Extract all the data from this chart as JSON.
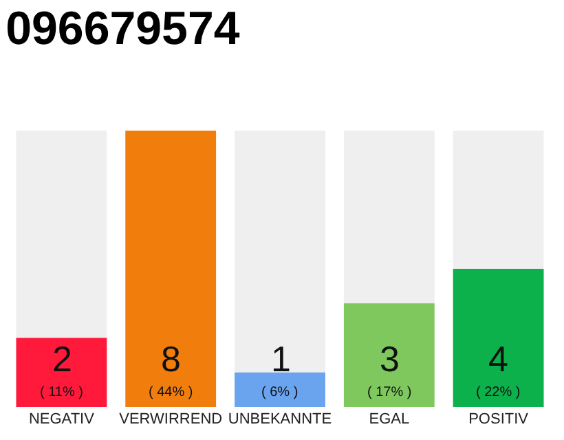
{
  "chart_data": {
    "type": "bar",
    "title": "096679574",
    "categories": [
      "NEGATIV",
      "VERWIRREND",
      "UNBEKANNTE",
      "EGAL",
      "POSITIV"
    ],
    "values": [
      2,
      8,
      1,
      3,
      4
    ],
    "colors": [
      "#ff1a3c",
      "#f07d0c",
      "#6aa3ee",
      "#7ec85e",
      "#0cb14b"
    ],
    "data_labels": true,
    "annotations": [
      "( 11% )",
      "( 44% )",
      "( 6% )",
      "( 17% )",
      "( 22% )"
    ],
    "grid": false
  }
}
